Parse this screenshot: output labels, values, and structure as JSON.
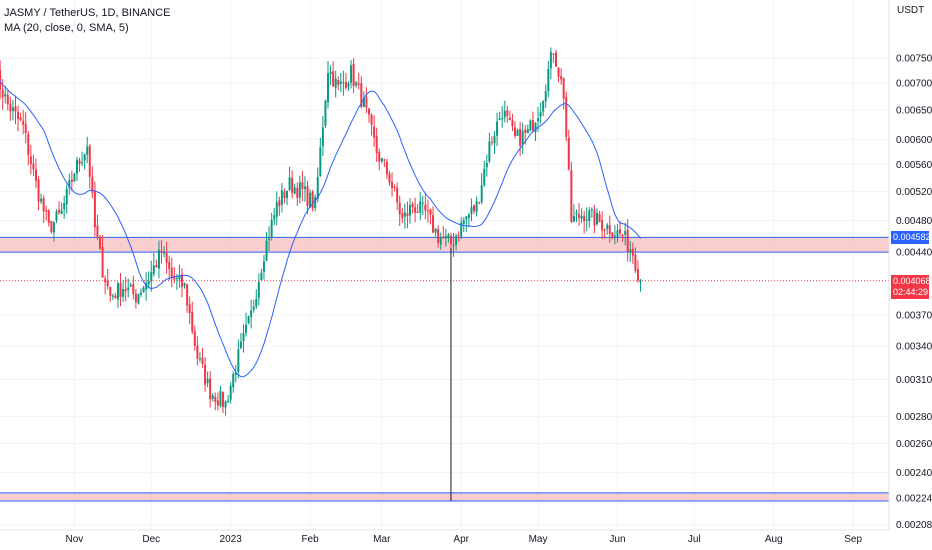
{
  "legend": {
    "title": "JASMY / TetherUS, 1D, BINANCE",
    "indicator": "MA (20, close, 0, SMA, 5)"
  },
  "currency": "USDT",
  "price_tags": {
    "zone_price": "0.004582",
    "last_price": "0.004068",
    "countdown": "02:44:29",
    "zone_color": "#2962ff",
    "last_color": "#f23645"
  },
  "colors": {
    "up": "#089981",
    "down": "#f23645",
    "ma": "#2962ff",
    "zone_fill": "#f9c4c6"
  },
  "chart_data": {
    "type": "candlestick",
    "title": "JASMY / TetherUS, 1D, BINANCE",
    "y_ticks": [
      "0.007500",
      "0.007000",
      "0.006500",
      "0.006000",
      "0.005600",
      "0.005200",
      "0.004800",
      "0.004400",
      "0.003700",
      "0.003400",
      "0.003100",
      "0.002800",
      "0.002600",
      "0.002400",
      "0.002240",
      "0.002080"
    ],
    "x_ticks": [
      "Nov",
      "Dec",
      "2023",
      "Feb",
      "Mar",
      "Apr",
      "May",
      "Jun",
      "Jul",
      "Aug",
      "Sep"
    ],
    "scale": "log",
    "ylim": [
      0.00205,
      0.0088
    ],
    "zones": [
      {
        "from": 0.0044,
        "to": 0.004582
      },
      {
        "from": 0.00222,
        "to": 0.00227
      }
    ],
    "last_price": 0.004068,
    "anchors": [
      [
        "2022-10-01",
        0.0072
      ],
      [
        "2022-10-06",
        0.0066
      ],
      [
        "2022-10-12",
        0.0062
      ],
      [
        "2022-10-17",
        0.0053
      ],
      [
        "2022-10-22",
        0.0047
      ],
      [
        "2022-10-27",
        0.0049
      ],
      [
        "2022-11-01",
        0.0055
      ],
      [
        "2022-11-06",
        0.0059
      ],
      [
        "2022-11-09",
        0.0047
      ],
      [
        "2022-11-12",
        0.0042
      ],
      [
        "2022-11-15",
        0.0039
      ],
      [
        "2022-11-20",
        0.004
      ],
      [
        "2022-11-25",
        0.0039
      ],
      [
        "2022-11-30",
        0.0041
      ],
      [
        "2022-12-05",
        0.0044
      ],
      [
        "2022-12-09",
        0.0041
      ],
      [
        "2022-12-14",
        0.004
      ],
      [
        "2022-12-19",
        0.0033
      ],
      [
        "2022-12-24",
        0.003
      ],
      [
        "2022-12-30",
        0.0029
      ],
      [
        "2023-01-04",
        0.0033
      ],
      [
        "2023-01-09",
        0.0037
      ],
      [
        "2023-01-14",
        0.0044
      ],
      [
        "2023-01-19",
        0.005
      ],
      [
        "2023-01-24",
        0.0053
      ],
      [
        "2023-01-29",
        0.0052
      ],
      [
        "2023-02-03",
        0.005
      ],
      [
        "2023-02-08",
        0.0073
      ],
      [
        "2023-02-12",
        0.0069
      ],
      [
        "2023-02-17",
        0.0072
      ],
      [
        "2023-02-22",
        0.0066
      ],
      [
        "2023-02-27",
        0.0058
      ],
      [
        "2023-03-04",
        0.0054
      ],
      [
        "2023-03-09",
        0.0048
      ],
      [
        "2023-03-13",
        0.005
      ],
      [
        "2023-03-18",
        0.0049
      ],
      [
        "2023-03-23",
        0.0046
      ],
      [
        "2023-03-28",
        0.0045
      ],
      [
        "2023-04-02",
        0.0048
      ],
      [
        "2023-04-07",
        0.005
      ],
      [
        "2023-04-12",
        0.0059
      ],
      [
        "2023-04-17",
        0.0065
      ],
      [
        "2023-04-22",
        0.006
      ],
      [
        "2023-04-27",
        0.0061
      ],
      [
        "2023-05-02",
        0.0066
      ],
      [
        "2023-05-07",
        0.0077
      ],
      [
        "2023-05-11",
        0.0068
      ],
      [
        "2023-05-14",
        0.0048
      ],
      [
        "2023-05-19",
        0.0049
      ],
      [
        "2023-05-24",
        0.0048
      ],
      [
        "2023-05-29",
        0.0047
      ],
      [
        "2023-06-03",
        0.0046
      ],
      [
        "2023-06-07",
        0.0044
      ],
      [
        "2023-06-10",
        0.004068
      ]
    ],
    "ma_period": 20
  }
}
